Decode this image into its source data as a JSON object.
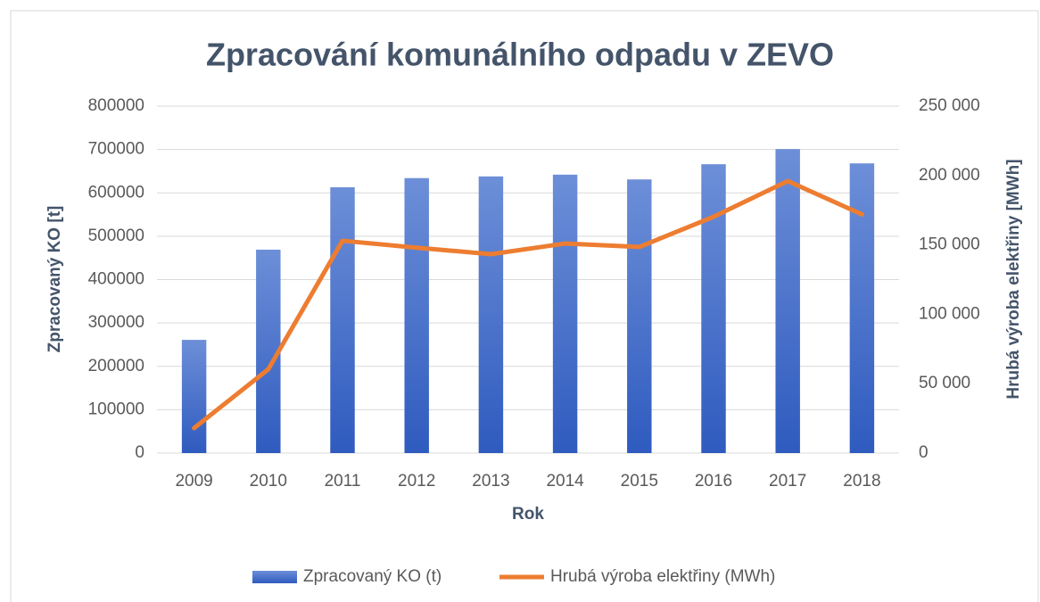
{
  "chart_data": {
    "type": "bar-line",
    "title": "Zpracování komunálního odpadu v ZEVO",
    "x_label": "Rok",
    "y_label": "Zpracovaný KO [t]",
    "y2_label": "Hrubá výroba elektřiny [MWh]",
    "categories": [
      "2009",
      "2010",
      "2011",
      "2012",
      "2013",
      "2014",
      "2015",
      "2016",
      "2017",
      "2018"
    ],
    "series": [
      {
        "name": "Zpracovaný KO (t)",
        "type": "bar",
        "color": "#4472c4",
        "values": [
          261000,
          469000,
          613000,
          634000,
          638000,
          642000,
          631000,
          666000,
          701000,
          668000
        ]
      },
      {
        "name": "Hrubá výroba elektřiny (MWh)",
        "type": "line",
        "axis": "y2",
        "color": "#ed7d31",
        "values": [
          18000,
          60400,
          153000,
          148000,
          143300,
          151000,
          148500,
          170300,
          196000,
          172000
        ]
      }
    ],
    "ylim": [
      0,
      800000
    ],
    "yticks": [
      0,
      100000,
      200000,
      300000,
      400000,
      500000,
      600000,
      700000,
      800000
    ],
    "y2lim": [
      0,
      250000
    ],
    "y2ticks": [
      0,
      {
        "value": 50000,
        "label": "50 000"
      },
      {
        "value": 100000,
        "label": "100 000"
      },
      {
        "value": 150000,
        "label": "150 000"
      },
      {
        "value": 200000,
        "label": "200 000"
      },
      {
        "value": 250000,
        "label": "250 000"
      }
    ],
    "grid": true,
    "legend": "bottom"
  }
}
